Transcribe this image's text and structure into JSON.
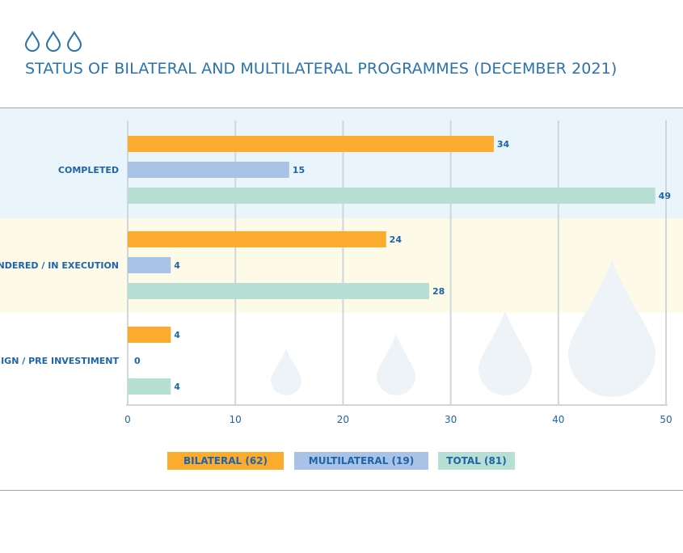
{
  "header": {
    "title": "STATUS OF BILATERAL AND MULTILATERAL PROGRAMMES (DECEMBER 2021)"
  },
  "colors": {
    "bilateral": "#fbab2e",
    "multilateral": "#a9c3e6",
    "total": "#b8dfd3",
    "band_completed": "#e9f4fb",
    "band_execution": "#fdfae7",
    "text": "#1f64a8",
    "grid": "#cfd6dc"
  },
  "chart_data": {
    "type": "bar",
    "orientation": "horizontal",
    "categories": [
      "COMPLETED",
      "ENDERED / IN EXECUTION",
      "ESIGN / PRE INVESTIMENT"
    ],
    "series": [
      {
        "name": "BILATERAL (62)",
        "values": [
          34,
          24,
          4
        ]
      },
      {
        "name": "MULTILATERAL (19)",
        "values": [
          15,
          4,
          0
        ]
      },
      {
        "name": "TOTAL (81)",
        "values": [
          49,
          28,
          4
        ]
      }
    ],
    "xlim": [
      0,
      50
    ],
    "xticks": [
      0,
      10,
      20,
      30,
      40,
      50
    ],
    "grid": true,
    "legend_position": "bottom"
  }
}
